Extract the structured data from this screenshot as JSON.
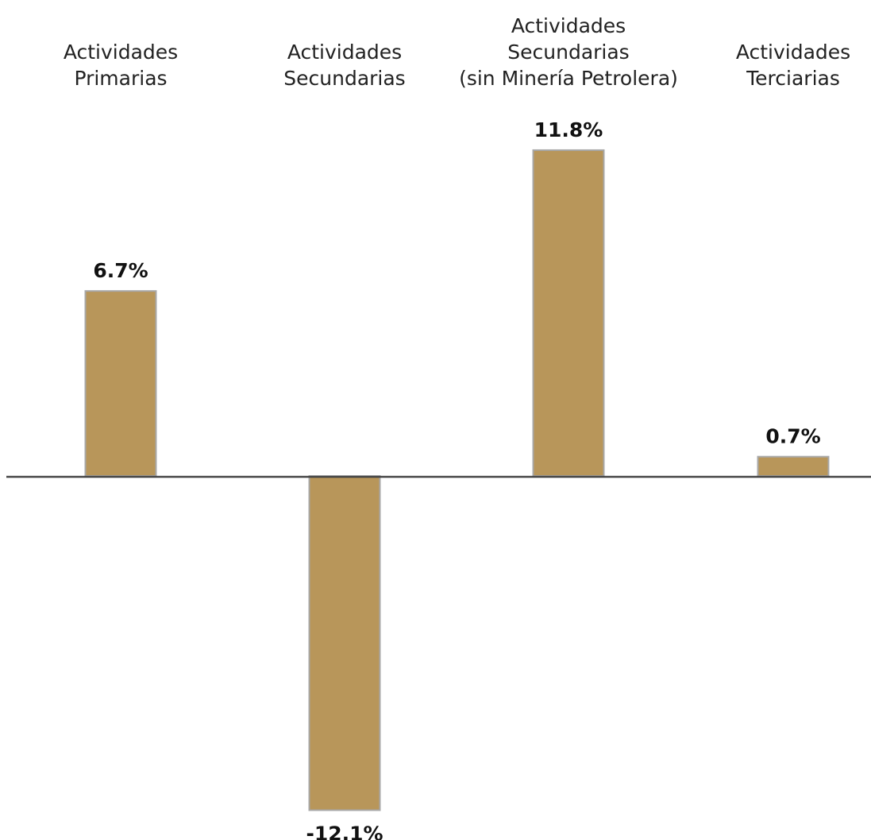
{
  "chart_data": {
    "type": "bar",
    "categories": [
      [
        "Actividades",
        "Primarias"
      ],
      [
        "Actividades",
        "Secundarias"
      ],
      [
        "Actividades",
        "Secundarias",
        "(sin Minería Petrolera)"
      ],
      [
        "Actividades",
        "Terciarias"
      ]
    ],
    "values": [
      6.7,
      -12.1,
      11.8,
      0.7
    ],
    "value_labels": [
      "6.7%",
      "-12.1%",
      "11.8%",
      "0.7%"
    ],
    "category_position": "top",
    "title": "",
    "xlabel": "",
    "ylabel": "",
    "ylim": [
      -12.1,
      11.8
    ],
    "grid": false,
    "legend": "none"
  },
  "colors": {
    "bar_fill": "#b8965a",
    "bar_stroke": "#a8a8a8",
    "axis_line": "#444444",
    "text": "#222222"
  }
}
